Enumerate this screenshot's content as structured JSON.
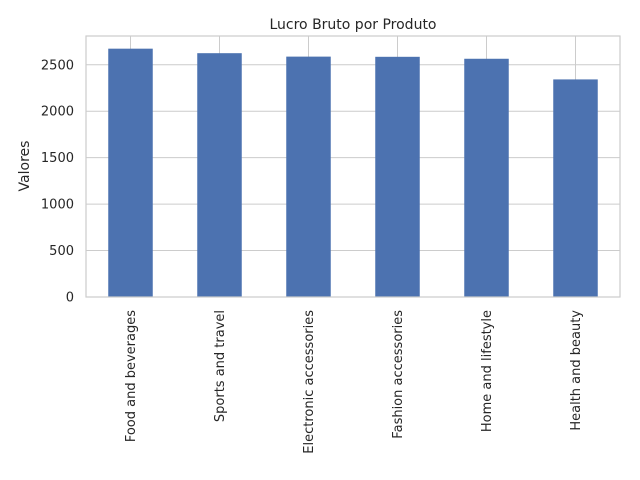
{
  "chart_data": {
    "type": "bar",
    "title": "Lucro Bruto por Produto",
    "xlabel": "",
    "ylabel": "Valores",
    "categories": [
      "Food and beverages",
      "Sports and travel",
      "Electronic accessories",
      "Fashion accessories",
      "Home and lifestyle",
      "Health and beauty"
    ],
    "values": [
      2673.6,
      2625.0,
      2588.0,
      2586.0,
      2564.9,
      2342.6
    ],
    "ylim": [
      0,
      2810
    ],
    "yticks": [
      0,
      500,
      1000,
      1500,
      2000,
      2500
    ],
    "grid": true,
    "bar_color": "#4c72b0"
  }
}
